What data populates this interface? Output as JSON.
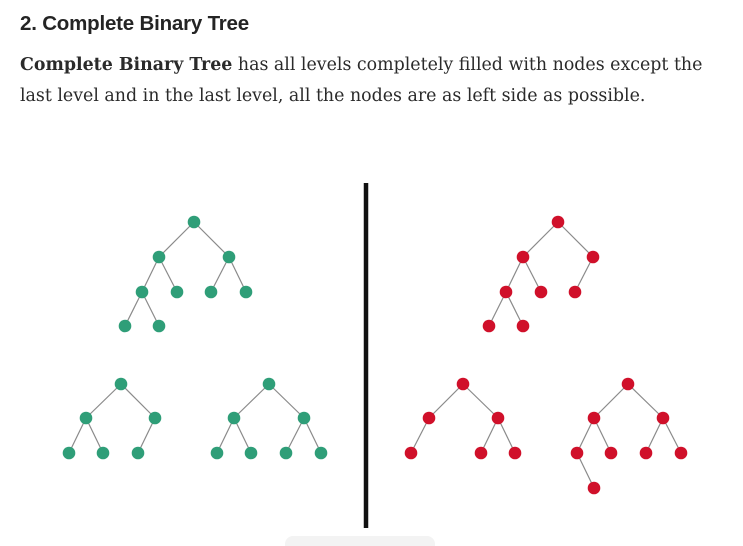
{
  "section": {
    "heading": "2. Complete Binary Tree",
    "paragraph_term": "Complete Binary Tree",
    "paragraph_rest": " has all levels completely filled with nodes except the last level and in the last level, all the nodes are as left side as possible."
  },
  "colors": {
    "valid": "#2f9e78",
    "invalid": "#d0102a",
    "edge": "#8a8a8a",
    "divider": "#111111"
  },
  "figure": {
    "trees": [
      {
        "id": "green-tree-top",
        "color": "valid"
      },
      {
        "id": "green-tree-bottom-left",
        "color": "valid"
      },
      {
        "id": "green-tree-bottom-right",
        "color": "valid"
      },
      {
        "id": "red-tree-top",
        "color": "invalid"
      },
      {
        "id": "red-tree-bottom-left",
        "color": "invalid"
      },
      {
        "id": "red-tree-bottom-right",
        "color": "invalid"
      }
    ]
  }
}
